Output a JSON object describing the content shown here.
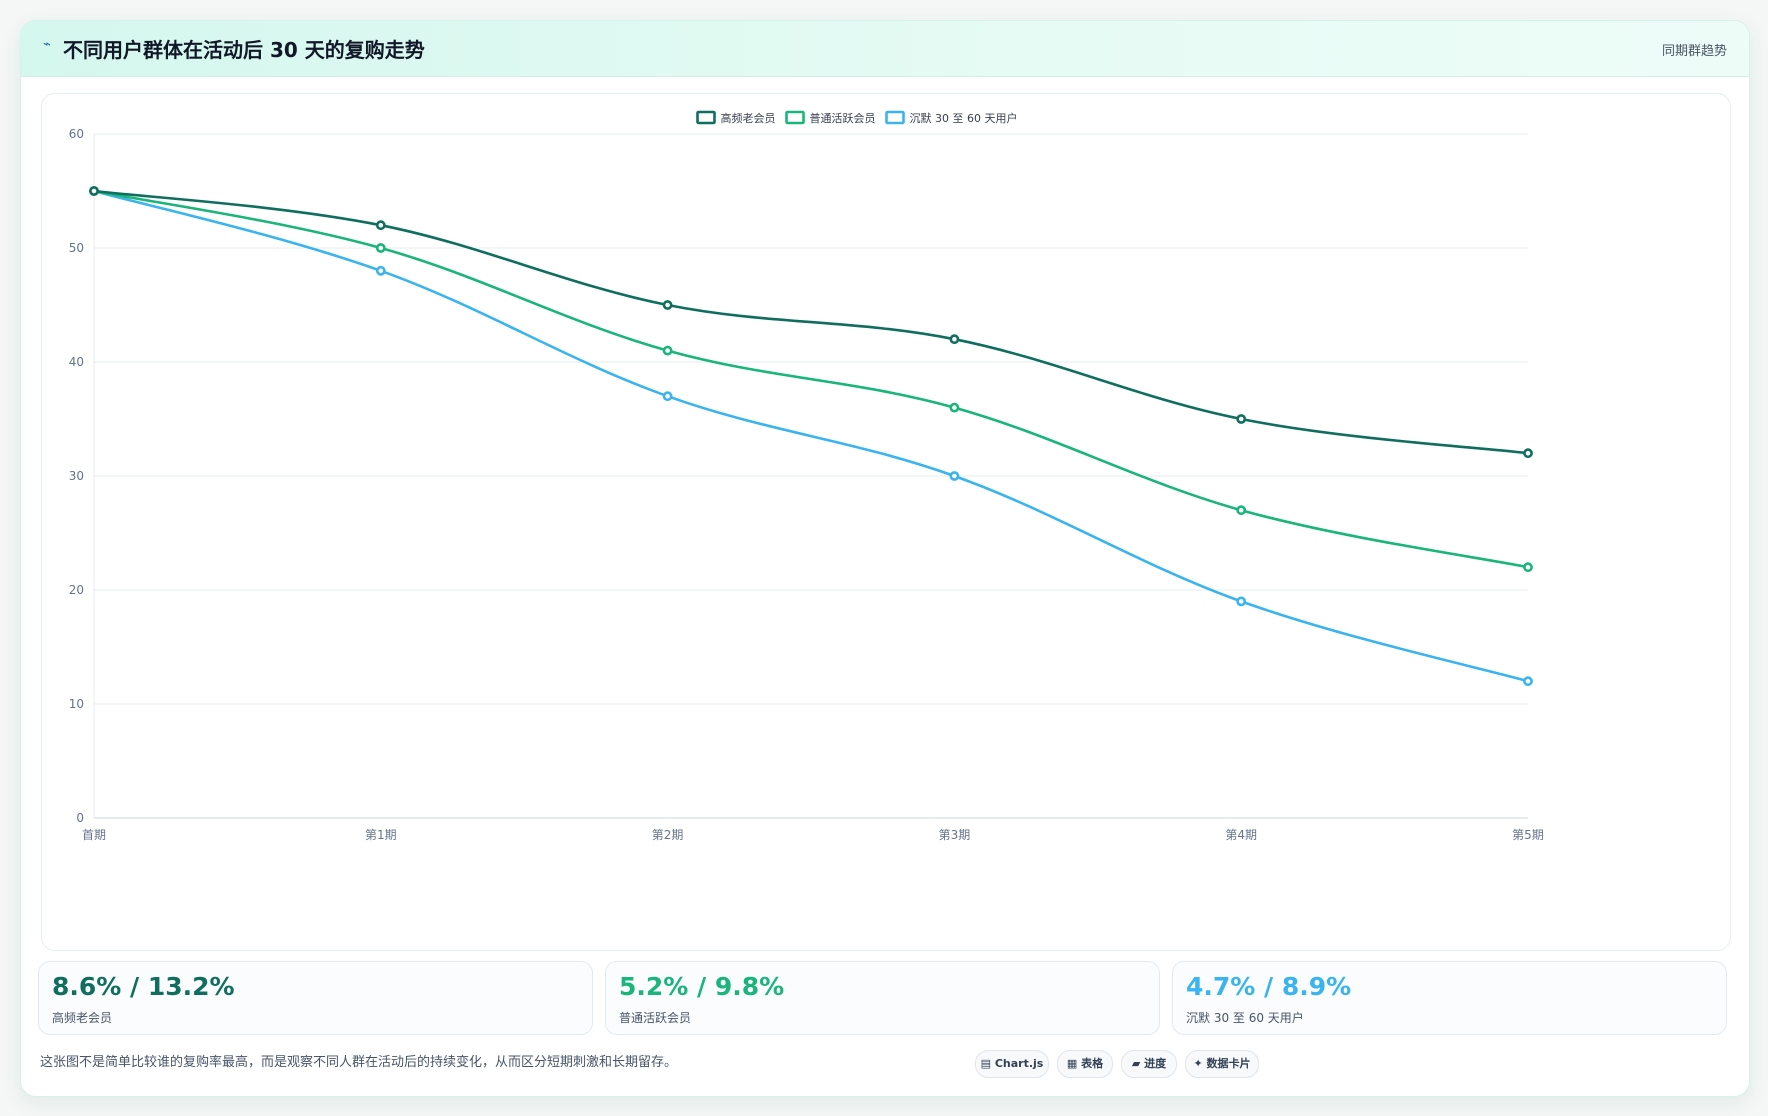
{
  "header": {
    "icon": "trend-line-icon",
    "title": "不同用户群体在活动后 30 天的复购走势",
    "tag": "同期群趋势"
  },
  "chart_data": {
    "type": "line",
    "title": "",
    "xlabel": "",
    "ylabel": "",
    "categories": [
      "首期",
      "第1期",
      "第2期",
      "第3期",
      "第4期",
      "第5期"
    ],
    "series": [
      {
        "name": "高频老会员",
        "color": "#0f6e5e",
        "values": [
          55,
          52,
          45,
          42,
          35,
          32
        ]
      },
      {
        "name": "普通活跃会员",
        "color": "#19b57a",
        "values": [
          55,
          50,
          41,
          36,
          27,
          22
        ]
      },
      {
        "name": "沉默 30 至 60 天用户",
        "color": "#3ab4ef",
        "values": [
          55,
          48,
          37,
          30,
          19,
          12
        ]
      }
    ],
    "ylim": [
      0,
      60
    ],
    "yticks": [
      0,
      10,
      20,
      30,
      40,
      50,
      60
    ],
    "grid": true,
    "legend": "top-center",
    "smooth": true
  },
  "stats": [
    {
      "value": "8.6% / 13.2%",
      "label": "高频老会员",
      "color": "#0f6e5e"
    },
    {
      "value": "5.2% / 9.8%",
      "label": "普通活跃会员",
      "color": "#19b57a"
    },
    {
      "value": "4.7% / 8.9%",
      "label": "沉默 30 至 60 天用户",
      "color": "#3ab4ef"
    }
  ],
  "footer": {
    "note": "这张图不是简单比较谁的复购率最高，而是观察不同人群在活动后的持续变化，从而区分短期刺激和长期留存。",
    "pills": [
      {
        "label": "▤ Chart.js"
      },
      {
        "label": "▦ 表格"
      },
      {
        "label": "▰ 进度"
      },
      {
        "label": "✦ 数据卡片"
      }
    ]
  }
}
